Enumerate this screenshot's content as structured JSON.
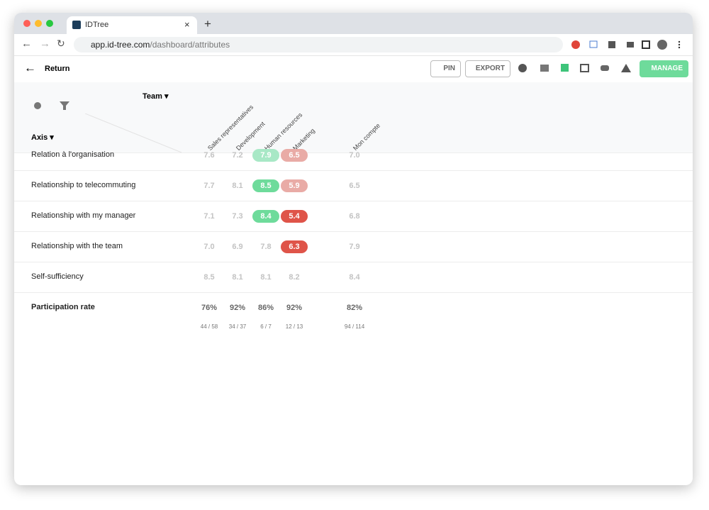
{
  "browser": {
    "tab_title": "IDTree",
    "url_host": "app.id-tree.com",
    "url_path": "/dashboard/attributes"
  },
  "toolbar": {
    "back": "Return",
    "pin": "PIN",
    "export": "EXPORT",
    "manage": "MANAGE"
  },
  "table": {
    "column_header": "Team",
    "row_header": "Axis",
    "columns": [
      "Sales representatives",
      "Development",
      "Human resources",
      "Marketing",
      "Mon compte"
    ],
    "rows": [
      {
        "label": "Relation à l'organisation",
        "values": [
          "7.6",
          "7.2",
          "7.9",
          "6.5",
          "7.0"
        ],
        "highlights": [
          null,
          null,
          "#a8e8c6",
          "#e9aba6",
          null
        ]
      },
      {
        "label": "Relationship to telecommuting",
        "values": [
          "7.7",
          "8.1",
          "8.5",
          "5.9",
          "6.5"
        ],
        "highlights": [
          null,
          null,
          "#6edb9b",
          "#e9aba6",
          null
        ]
      },
      {
        "label": "Relationship with my manager",
        "values": [
          "7.1",
          "7.3",
          "8.4",
          "5.4",
          "6.8"
        ],
        "highlights": [
          null,
          null,
          "#6edb9b",
          "#df5449",
          null
        ]
      },
      {
        "label": "Relationship with the team",
        "values": [
          "7.0",
          "6.9",
          "7.8",
          "6.3",
          "7.9"
        ],
        "highlights": [
          null,
          null,
          null,
          "#df5449",
          null
        ]
      },
      {
        "label": "Self-sufficiency",
        "values": [
          "8.5",
          "8.1",
          "8.1",
          "8.2",
          "8.4"
        ],
        "highlights": [
          null,
          null,
          null,
          null,
          null
        ]
      }
    ],
    "participation": {
      "label": "Participation rate",
      "values": [
        "76%",
        "92%",
        "86%",
        "92%",
        "82%"
      ],
      "counts": [
        "44 / 58",
        "34 / 37",
        "6 / 7",
        "12 / 13",
        "94 / 114"
      ]
    }
  }
}
